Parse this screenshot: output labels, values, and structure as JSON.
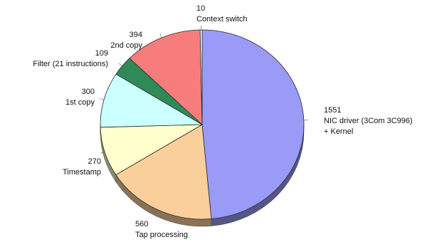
{
  "chart_data": {
    "type": "pie",
    "title": "",
    "slices": [
      {
        "label": "NIC driver (3Com 3C996)\n+ Kernel",
        "value": 1551,
        "color": "#9a9af7"
      },
      {
        "label": "Tap processing",
        "value": 560,
        "color": "#fbcf9c"
      },
      {
        "label": "Timestamp",
        "value": 270,
        "color": "#ffffcc"
      },
      {
        "label": "1st copy",
        "value": 300,
        "color": "#ccffff"
      },
      {
        "label": "Filter (21 instructions)",
        "value": 109,
        "color": "#2e8b57"
      },
      {
        "label": "2nd copy",
        "value": 394,
        "color": "#f77d7d"
      },
      {
        "label": "Context switch",
        "value": 10,
        "color": "#ffffff"
      }
    ],
    "start_angle_deg": 0,
    "direction": "clockwise",
    "style": "3d-tilted",
    "legend": "none"
  }
}
